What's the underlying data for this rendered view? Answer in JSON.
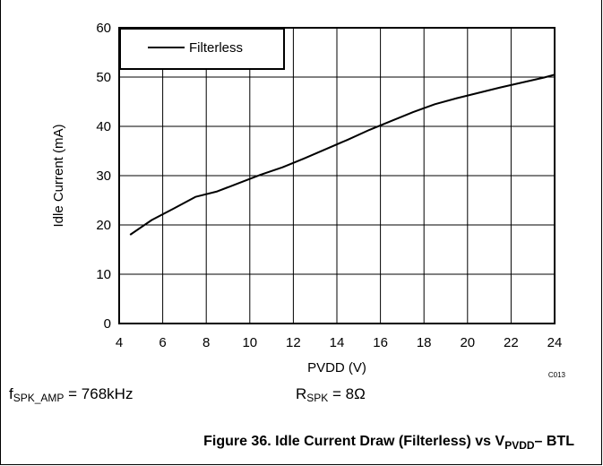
{
  "chart_data": {
    "type": "line",
    "xlabel": "PVDD (V)",
    "ylabel": "Idle Current (mA)",
    "xlim": [
      4,
      24
    ],
    "ylim": [
      0,
      60
    ],
    "x_ticks": [
      "4",
      "6",
      "8",
      "10",
      "12",
      "14",
      "16",
      "18",
      "20",
      "22",
      "24"
    ],
    "y_ticks": [
      "0",
      "10",
      "20",
      "30",
      "40",
      "50",
      "60"
    ],
    "grid": true,
    "legend_position": "top-left",
    "series": [
      {
        "name": "Filterless",
        "x": [
          4.5,
          5.5,
          6.5,
          7.5,
          8.5,
          9.5,
          10.5,
          11.5,
          12.5,
          13.5,
          14.5,
          15.5,
          16.5,
          17.5,
          18.5,
          19.5,
          20.5,
          21.5,
          22.5,
          23.5,
          24
        ],
        "values": [
          18.0,
          21.0,
          23.3,
          25.7,
          26.8,
          28.5,
          30.2,
          31.7,
          33.5,
          35.4,
          37.3,
          39.3,
          41.1,
          42.9,
          44.5,
          45.7,
          46.8,
          47.9,
          48.9,
          49.9,
          50.5
        ]
      }
    ],
    "chart_code": "C013"
  },
  "conditions": {
    "left": {
      "main": "f",
      "sub": "SPK_AMP",
      "rest": " = 768kHz"
    },
    "right": {
      "main": "R",
      "sub": "SPK",
      "rest": " = 8Ω"
    }
  },
  "caption": {
    "prefix": "Figure 36. Idle Current Draw (Filterless) vs V",
    "sub": "PVDD",
    "suffix": "– BTL"
  },
  "colors": {
    "line": "#000000",
    "grid": "#000000",
    "background": "#ffffff"
  }
}
